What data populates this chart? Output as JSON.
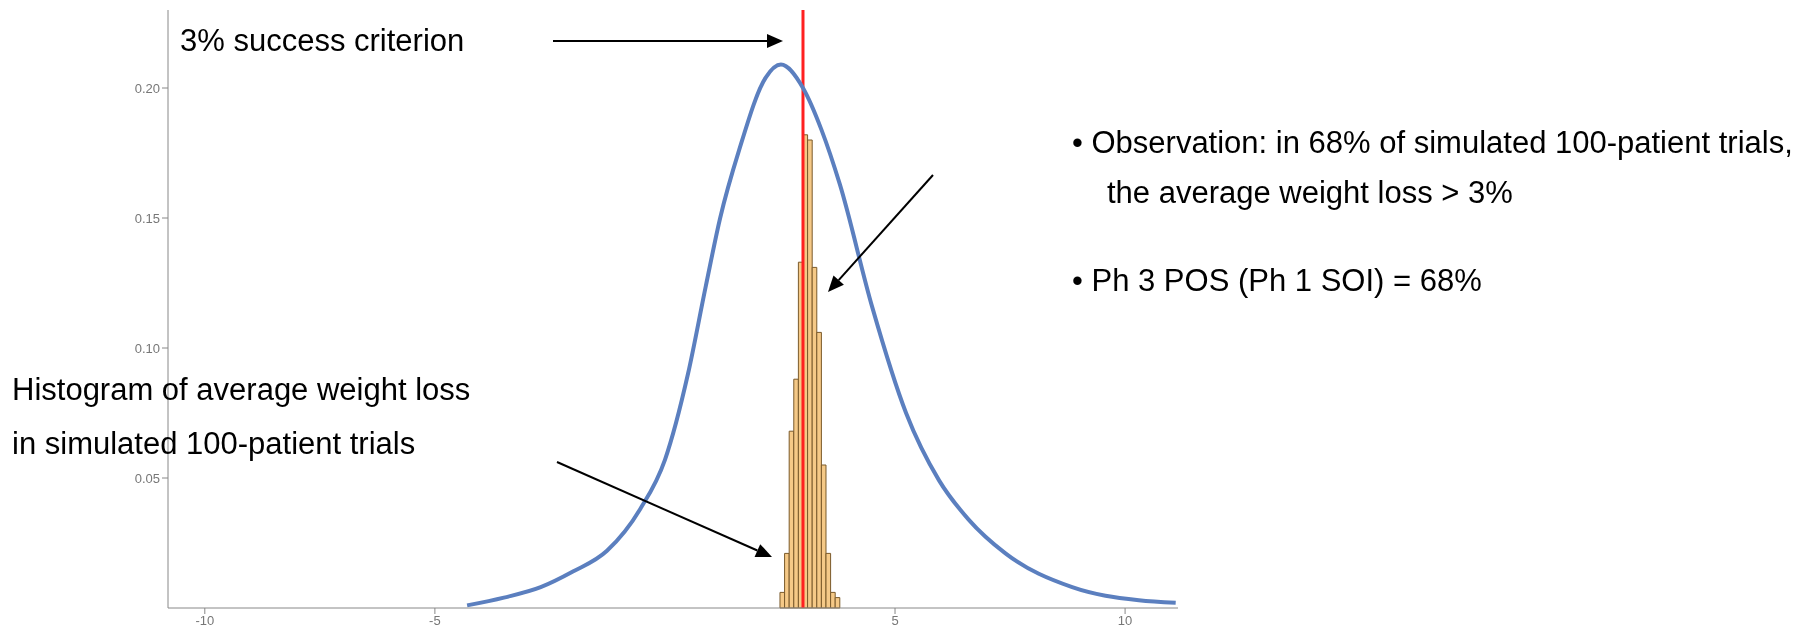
{
  "chart_data": {
    "type": "histogram",
    "bins": [
      2.5,
      2.6,
      2.7,
      2.8,
      2.9,
      3.0,
      3.1,
      3.2,
      3.3,
      3.4,
      3.5,
      3.6,
      3.7,
      3.8
    ],
    "values": [
      0.006,
      0.021,
      0.068,
      0.088,
      0.133,
      0.182,
      0.18,
      0.131,
      0.106,
      0.055,
      0.021,
      0.006,
      0.004
    ],
    "color": "#f5c987",
    "series": [
      {
        "type": "line",
        "color": "#5b7fbf",
        "x": [
          -4.3,
          -3.5,
          -2.7,
          -2,
          -1.26,
          -0.54,
          0,
          0.5,
          0.89,
          1.2,
          1.61,
          2.19,
          2.52,
          3,
          3.4,
          3.8,
          4.5,
          5.24,
          5.96,
          6.6,
          7.4,
          8.85,
          10.3,
          11.1
        ],
        "values": [
          0.001,
          0.004,
          0.008,
          0.014,
          0.022,
          0.038,
          0.057,
          0.09,
          0.124,
          0.15,
          0.176,
          0.204,
          0.209,
          0.2,
          0.184,
          0.163,
          0.116,
          0.075,
          0.049,
          0.034,
          0.021,
          0.008,
          0.003,
          0.002
        ]
      }
    ],
    "xlim": [
      -10.8,
      11.15
    ],
    "xticks": [
      -10,
      -5,
      5,
      10
    ],
    "ylim": [
      0,
      0.23
    ],
    "yticks": [
      {
        "value": 0.05,
        "label": "0.05"
      },
      {
        "value": 0.1,
        "label": "0.10"
      },
      {
        "value": 0.15,
        "label": "0.15"
      },
      {
        "value": 0.2,
        "label": "0.20"
      }
    ],
    "grid": false,
    "legend": false,
    "ref_lines": [
      {
        "axis": "x",
        "value": 3,
        "color": "#ff2020"
      }
    ],
    "annotations": [
      "3% success criterion",
      "Histogram of average weight loss\nin simulated 100-patient trials",
      "•  Observation: in 68% of simulated 100-patient trials, the average weight loss > 3%",
      "•  Ph 3 POS (Ph 1 SOI) = 68%"
    ]
  }
}
